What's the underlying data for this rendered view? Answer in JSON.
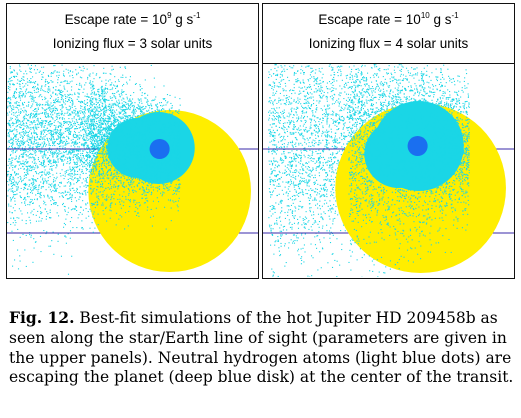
{
  "panels": [
    {
      "escape_label": "Escape rate = ",
      "escape_base": "10",
      "escape_exp": "9",
      "escape_unit": " g s",
      "escape_unit_exp": "-1",
      "flux_label": "Ionizing flux = 3 solar units"
    },
    {
      "escape_label": "Escape rate = ",
      "escape_base": "10",
      "escape_exp": "10",
      "escape_unit": " g s",
      "escape_unit_exp": "-1",
      "flux_label": "Ionizing flux = 4 solar units"
    }
  ],
  "colors": {
    "star": "#ffee00",
    "planet": "#1a6ff0",
    "atoms": "#1ad6e6",
    "orbit_line": "#3a2aa8"
  },
  "caption": {
    "label": "Fig. 12.",
    "text": " Best-fit simulations of the hot Jupiter HD 209458b as seen along the star/Earth line of sight (parameters are given in the upper panels). Neutral hydrogen atoms (light blue dots) are escaping the planet (deep blue disk) at the center of the transit."
  }
}
